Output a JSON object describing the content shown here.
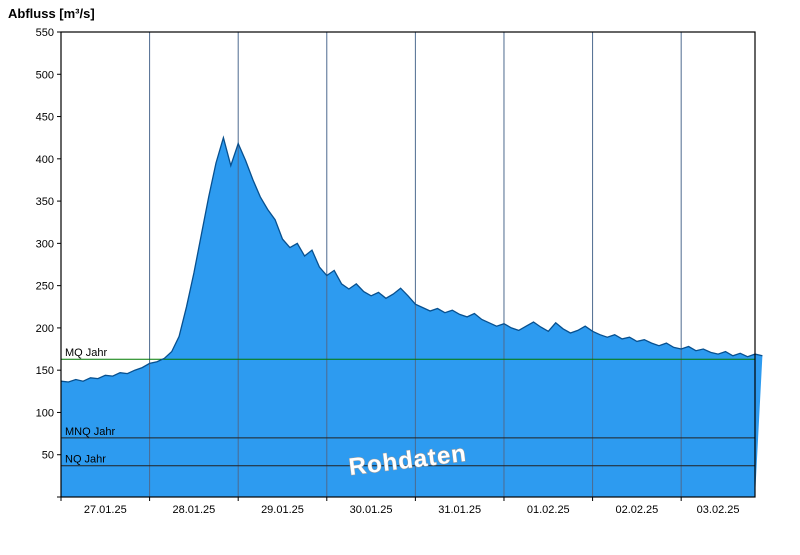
{
  "chart_data": {
    "type": "area",
    "title": "Abfluss [m³/s]",
    "ylabel": "Abfluss [m³/s]",
    "xlabel": "",
    "ylim": [
      0,
      550
    ],
    "y_tick_interval": 50,
    "x_range_hours": [
      0,
      188
    ],
    "x_step_hours": 2,
    "x_day_labels": [
      "27.01.25",
      "28.01.25",
      "29.01.25",
      "30.01.25",
      "31.01.25",
      "01.02.25",
      "02.02.25",
      "03.02.25"
    ],
    "grid": "vertical-day-lines",
    "legend_position": "none",
    "watermark": "Rohdaten",
    "series": [
      {
        "name": "Abfluss Rohdaten",
        "unit": "m³/s",
        "values": [
          137,
          136,
          139,
          137,
          141,
          140,
          144,
          143,
          147,
          146,
          150,
          153,
          158,
          160,
          164,
          172,
          190,
          225,
          265,
          310,
          355,
          395,
          425,
          392,
          418,
          398,
          375,
          355,
          340,
          328,
          305,
          295,
          300,
          285,
          292,
          272,
          262,
          268,
          252,
          246,
          252,
          243,
          238,
          242,
          235,
          240,
          247,
          238,
          228,
          224,
          220,
          223,
          218,
          221,
          216,
          213,
          217,
          210,
          206,
          202,
          205,
          200,
          197,
          202,
          207,
          201,
          196,
          206,
          199,
          194,
          197,
          202,
          196,
          192,
          189,
          192,
          187,
          189,
          184,
          186,
          182,
          179,
          182,
          177,
          175,
          178,
          173,
          175,
          171,
          169,
          172,
          167,
          170,
          166,
          169,
          167
        ]
      }
    ],
    "reference_lines": [
      {
        "label": "MQ Jahr",
        "value": 163,
        "color": "#007a00"
      },
      {
        "label": "MNQ Jahr",
        "value": 70,
        "color": "#222222"
      },
      {
        "label": "NQ Jahr",
        "value": 37,
        "color": "#222222"
      }
    ],
    "colors": {
      "area_fill": "#2d9bf0",
      "area_stroke": "#07508f",
      "grid_line": "#4d6a8f",
      "axis": "#000000",
      "watermark_fill": "#ffffff",
      "watermark_outline": "#999999"
    }
  }
}
